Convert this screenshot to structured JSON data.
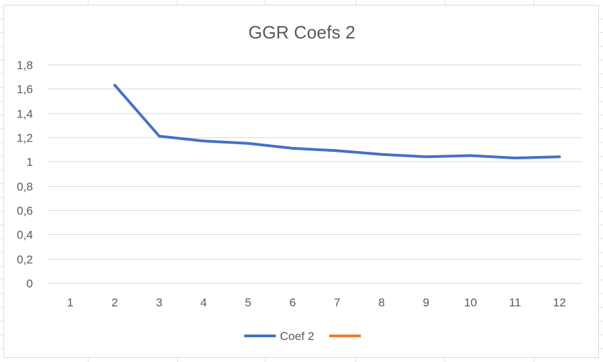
{
  "chart_data": {
    "type": "line",
    "title": "GGR Coefs 2",
    "xlabel": "",
    "ylabel": "",
    "categories": [
      "1",
      "2",
      "3",
      "4",
      "5",
      "6",
      "7",
      "8",
      "9",
      "10",
      "11",
      "12"
    ],
    "ylim": [
      0,
      1.8
    ],
    "yticks": [
      "0",
      "0,2",
      "0,4",
      "0,6",
      "0,8",
      "1",
      "1,2",
      "1,4",
      "1,6",
      "1,8"
    ],
    "grid": true,
    "legend": "bottom",
    "series": [
      {
        "name": "Coef 2",
        "color": "#4472c4",
        "values": [
          null,
          1.63,
          1.21,
          1.17,
          1.15,
          1.11,
          1.09,
          1.06,
          1.04,
          1.05,
          1.03,
          1.04
        ]
      },
      {
        "name": "",
        "color": "#ed7d31",
        "values": [
          null,
          null,
          null,
          null,
          null,
          null,
          null,
          null,
          null,
          null,
          null,
          null
        ]
      }
    ]
  }
}
